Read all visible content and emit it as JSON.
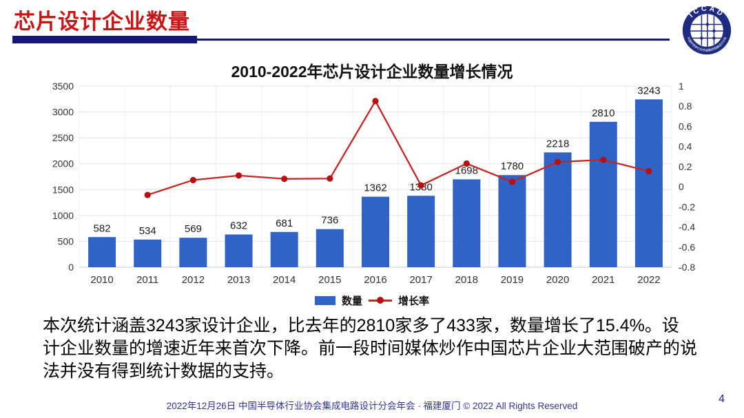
{
  "header": {
    "title": "芯片设计企业数量"
  },
  "logo": {
    "label": "ICCAD",
    "subtext": "中国半导体行业协会集成电路设计分会",
    "ring_color": "#1F2B80"
  },
  "chart": {
    "title": "2010-2022年芯片设计企业数量增长情况"
  },
  "chart_data": {
    "type": "bar",
    "title": "2010-2022年芯片设计企业数量增长情况",
    "categories": [
      "2010",
      "2011",
      "2012",
      "2013",
      "2014",
      "2015",
      "2016",
      "2017",
      "2018",
      "2019",
      "2020",
      "2021",
      "2022"
    ],
    "series": [
      {
        "name": "数量",
        "type": "bar",
        "axis": "left",
        "color": "#2F63C7",
        "values": [
          582,
          534,
          569,
          632,
          681,
          736,
          1362,
          1380,
          1698,
          1780,
          2218,
          2810,
          3243
        ]
      },
      {
        "name": "增长率",
        "type": "line",
        "axis": "right",
        "color": "#C42525",
        "marker_color": "#B80F0F",
        "values": [
          null,
          -0.082,
          0.066,
          0.111,
          0.078,
          0.081,
          0.851,
          0.013,
          0.23,
          0.048,
          0.246,
          0.267,
          0.154
        ]
      }
    ],
    "left_axis": {
      "min": 0,
      "max": 3500,
      "step": 500
    },
    "right_axis": {
      "min": -0.8,
      "max": 1,
      "step": 0.2
    },
    "grid": true,
    "legend_position": "bottom"
  },
  "body": {
    "lines": [
      "本次统计涵盖3243家设计企业，比去年的2810家多了433家，数量增长了15.4%。设",
      "计企业数量的增速近年来首次下降。前一段时间媒体炒作中国芯片企业大范围破产的说",
      "法并没有得到统计数据的支持。"
    ]
  },
  "footer": {
    "text": "2022年12月26日 中国半导体行业协会集成电路设计分会年会 · 福建厦门 © 2022 All Rights Reserved",
    "page": "4"
  }
}
